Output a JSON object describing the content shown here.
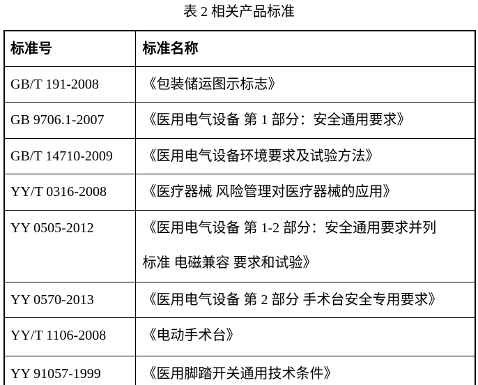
{
  "page": {
    "caption": "表 2 相关产品标准"
  },
  "table": {
    "columns": [
      {
        "label": "标准号"
      },
      {
        "label": "标准名称"
      }
    ],
    "rows": [
      {
        "code": "GB/T 191-2008",
        "name": "《包装储运图示标志》"
      },
      {
        "code": "GB 9706.1-2007",
        "name": "《医用电气设备 第 1 部分：安全通用要求》"
      },
      {
        "code": "GB/T 14710-2009",
        "name": "《医用电气设备环境要求及试验方法》"
      },
      {
        "code": "YY/T 0316-2008",
        "name": "《医疗器械 风险管理对医疗器械的应用》"
      },
      {
        "code": "YY 0505-2012",
        "name": "《医用电气设备 第 1-2 部分：安全通用要求并列\n标准 电磁兼容 要求和试验》"
      },
      {
        "code": "YY 0570-2013",
        "name": "《医用电气设备 第 2 部分 手术台安全专用要求》"
      },
      {
        "code": "YY/T 1106-2008",
        "name": "《电动手术台》"
      },
      {
        "code": "YY 91057-1999",
        "name": "《医用脚踏开关通用技术条件》"
      }
    ]
  },
  "colors": {
    "text": "#000000",
    "border": "#000000",
    "background": "#ffffff"
  }
}
